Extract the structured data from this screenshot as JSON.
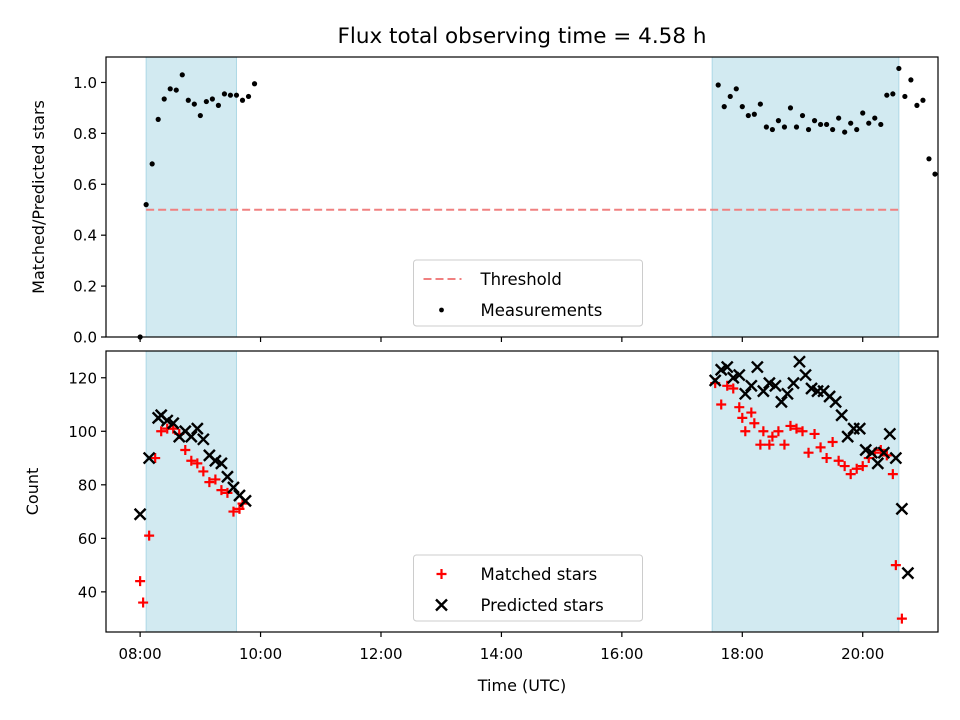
{
  "figure": {
    "title": "Flux total observing time = 4.58 h",
    "xlabel": "Time (UTC)"
  },
  "colors": {
    "band": "#add8e6",
    "threshold": "#f08080",
    "measurements": "#000000",
    "matched": "#ff0000",
    "predicted": "#000000"
  },
  "chart_data": [
    {
      "type": "scatter",
      "ylabel": "Matched/Predicted stars",
      "xlim": [
        "07:26",
        "21:15"
      ],
      "ylim": [
        0,
        1.1
      ],
      "yticks": [
        0.0,
        0.2,
        0.4,
        0.6,
        0.8,
        1.0
      ],
      "ytick_labels": [
        "0.0",
        "0.2",
        "0.4",
        "0.6",
        "0.8",
        "1.0"
      ],
      "xticks": [
        "08:00",
        "10:00",
        "12:00",
        "14:00",
        "16:00",
        "18:00",
        "20:00"
      ],
      "bands": [
        [
          "08:06",
          "09:36"
        ],
        [
          "17:30",
          "20:36"
        ]
      ],
      "threshold": 0.5,
      "threshold_range": [
        "08:06",
        "20:36"
      ],
      "legend_location": "lower center",
      "legend": [
        "Threshold",
        "Measurements"
      ],
      "series": [
        {
          "name": "Measurements",
          "marker": "dot",
          "points": [
            [
              "08:00",
              0.0
            ],
            [
              "08:06",
              0.52
            ],
            [
              "08:12",
              0.68
            ],
            [
              "08:18",
              0.855
            ],
            [
              "08:24",
              0.935
            ],
            [
              "08:30",
              0.975
            ],
            [
              "08:36",
              0.97
            ],
            [
              "08:42",
              1.03
            ],
            [
              "08:48",
              0.93
            ],
            [
              "08:54",
              0.915
            ],
            [
              "09:00",
              0.87
            ],
            [
              "09:06",
              0.925
            ],
            [
              "09:12",
              0.935
            ],
            [
              "09:18",
              0.91
            ],
            [
              "09:24",
              0.955
            ],
            [
              "09:30",
              0.95
            ],
            [
              "09:36",
              0.95
            ],
            [
              "09:42",
              0.93
            ],
            [
              "09:48",
              0.945
            ],
            [
              "09:54",
              0.995
            ],
            [
              "17:36",
              0.99
            ],
            [
              "17:42",
              0.905
            ],
            [
              "17:48",
              0.945
            ],
            [
              "17:54",
              0.975
            ],
            [
              "18:00",
              0.905
            ],
            [
              "18:06",
              0.87
            ],
            [
              "18:12",
              0.875
            ],
            [
              "18:18",
              0.915
            ],
            [
              "18:24",
              0.825
            ],
            [
              "18:30",
              0.815
            ],
            [
              "18:36",
              0.85
            ],
            [
              "18:42",
              0.825
            ],
            [
              "18:48",
              0.9
            ],
            [
              "18:54",
              0.825
            ],
            [
              "19:00",
              0.87
            ],
            [
              "19:06",
              0.815
            ],
            [
              "19:12",
              0.85
            ],
            [
              "19:18",
              0.835
            ],
            [
              "19:24",
              0.835
            ],
            [
              "19:30",
              0.815
            ],
            [
              "19:36",
              0.86
            ],
            [
              "19:42",
              0.805
            ],
            [
              "19:48",
              0.84
            ],
            [
              "19:54",
              0.815
            ],
            [
              "20:00",
              0.88
            ],
            [
              "20:06",
              0.84
            ],
            [
              "20:12",
              0.86
            ],
            [
              "20:18",
              0.835
            ],
            [
              "20:24",
              0.95
            ],
            [
              "20:30",
              0.955
            ],
            [
              "20:36",
              1.055
            ],
            [
              "20:42",
              0.945
            ],
            [
              "20:48",
              1.01
            ],
            [
              "20:54",
              0.91
            ],
            [
              "21:00",
              0.93
            ],
            [
              "21:06",
              0.7
            ],
            [
              "21:12",
              0.64
            ]
          ]
        }
      ]
    },
    {
      "type": "scatter",
      "ylabel": "Count",
      "xlim": [
        "07:26",
        "21:15"
      ],
      "ylim": [
        25,
        130
      ],
      "yticks": [
        40,
        60,
        80,
        100,
        120
      ],
      "ytick_labels": [
        "40",
        "60",
        "80",
        "100",
        "120"
      ],
      "xticks": [
        "08:00",
        "10:00",
        "12:00",
        "14:00",
        "16:00",
        "18:00",
        "20:00"
      ],
      "xtick_labels": [
        "08:00",
        "10:00",
        "12:00",
        "14:00",
        "16:00",
        "18:00",
        "20:00"
      ],
      "bands": [
        [
          "08:06",
          "09:36"
        ],
        [
          "17:30",
          "20:36"
        ]
      ],
      "legend_location": "lower center",
      "legend": [
        "Matched stars",
        "Predicted stars"
      ],
      "series": [
        {
          "name": "Matched stars",
          "marker": "plus",
          "points": [
            [
              "08:00",
              44
            ],
            [
              "08:03",
              36
            ],
            [
              "08:09",
              61
            ],
            [
              "08:15",
              90
            ],
            [
              "08:21",
              100
            ],
            [
              "08:27",
              101
            ],
            [
              "08:33",
              101
            ],
            [
              "08:39",
              99
            ],
            [
              "08:45",
              93
            ],
            [
              "08:51",
              89
            ],
            [
              "08:57",
              88
            ],
            [
              "09:03",
              85
            ],
            [
              "09:09",
              81
            ],
            [
              "09:15",
              82
            ],
            [
              "09:21",
              78
            ],
            [
              "09:27",
              77
            ],
            [
              "09:33",
              70
            ],
            [
              "09:39",
              71
            ],
            [
              "09:42",
              73
            ],
            [
              "17:33",
              118
            ],
            [
              "17:39",
              110
            ],
            [
              "17:45",
              117
            ],
            [
              "17:51",
              116
            ],
            [
              "17:57",
              109
            ],
            [
              "18:00",
              105
            ],
            [
              "18:03",
              100
            ],
            [
              "18:09",
              107
            ],
            [
              "18:12",
              103
            ],
            [
              "18:18",
              95
            ],
            [
              "18:21",
              100
            ],
            [
              "18:27",
              95
            ],
            [
              "18:30",
              98
            ],
            [
              "18:36",
              100
            ],
            [
              "18:42",
              95
            ],
            [
              "18:48",
              102
            ],
            [
              "18:54",
              101
            ],
            [
              "19:00",
              100
            ],
            [
              "19:06",
              92
            ],
            [
              "19:12",
              99
            ],
            [
              "19:18",
              94
            ],
            [
              "19:24",
              90
            ],
            [
              "19:30",
              96
            ],
            [
              "19:36",
              89
            ],
            [
              "19:42",
              87
            ],
            [
              "19:48",
              84
            ],
            [
              "19:54",
              86
            ],
            [
              "20:00",
              87
            ],
            [
              "20:06",
              90
            ],
            [
              "20:12",
              92
            ],
            [
              "20:18",
              93
            ],
            [
              "20:24",
              91
            ],
            [
              "20:30",
              84
            ],
            [
              "20:33",
              50
            ],
            [
              "20:39",
              30
            ]
          ]
        },
        {
          "name": "Predicted stars",
          "marker": "x",
          "points": [
            [
              "08:00",
              69
            ],
            [
              "08:09",
              90
            ],
            [
              "08:18",
              105
            ],
            [
              "08:21",
              106
            ],
            [
              "08:27",
              104
            ],
            [
              "08:33",
              103
            ],
            [
              "08:39",
              98
            ],
            [
              "08:45",
              100
            ],
            [
              "08:51",
              98
            ],
            [
              "08:57",
              101
            ],
            [
              "09:03",
              97
            ],
            [
              "09:09",
              91
            ],
            [
              "09:15",
              89
            ],
            [
              "09:21",
              88
            ],
            [
              "09:27",
              83
            ],
            [
              "09:33",
              79
            ],
            [
              "09:39",
              76
            ],
            [
              "09:45",
              74
            ],
            [
              "17:33",
              119
            ],
            [
              "17:39",
              123
            ],
            [
              "17:45",
              124
            ],
            [
              "17:51",
              120
            ],
            [
              "17:57",
              121
            ],
            [
              "18:03",
              114
            ],
            [
              "18:09",
              117
            ],
            [
              "18:15",
              124
            ],
            [
              "18:21",
              115
            ],
            [
              "18:27",
              118
            ],
            [
              "18:33",
              117
            ],
            [
              "18:39",
              111
            ],
            [
              "18:45",
              114
            ],
            [
              "18:51",
              118
            ],
            [
              "18:57",
              126
            ],
            [
              "19:03",
              121
            ],
            [
              "19:09",
              116
            ],
            [
              "19:15",
              115
            ],
            [
              "19:21",
              115
            ],
            [
              "19:27",
              113
            ],
            [
              "19:33",
              111
            ],
            [
              "19:39",
              106
            ],
            [
              "19:45",
              98
            ],
            [
              "19:51",
              101
            ],
            [
              "19:57",
              101
            ],
            [
              "20:03",
              93
            ],
            [
              "20:09",
              92
            ],
            [
              "20:15",
              88
            ],
            [
              "20:21",
              92
            ],
            [
              "20:27",
              99
            ],
            [
              "20:33",
              90
            ],
            [
              "20:39",
              71
            ],
            [
              "20:45",
              47
            ]
          ]
        }
      ]
    }
  ]
}
